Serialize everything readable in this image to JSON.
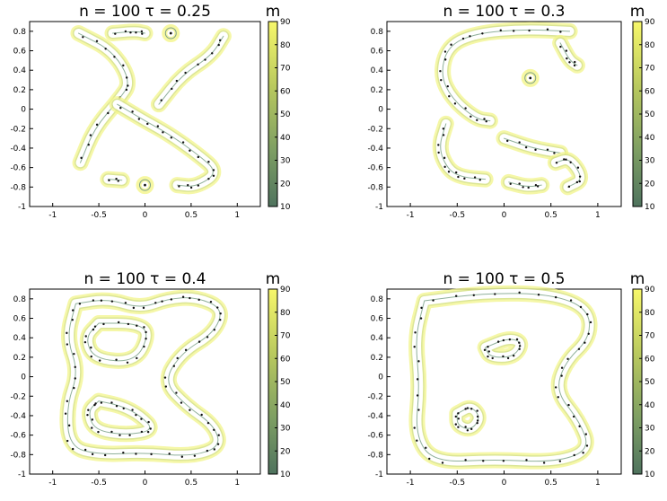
{
  "chart_data": [
    {
      "type": "contour",
      "title": "n = 100   τ = 0.25",
      "xlim": [
        -1.25,
        1.25
      ],
      "ylim": [
        -1,
        0.9
      ],
      "x_ticks": [
        "-1",
        "-0.5",
        "0",
        "0.5",
        "1"
      ],
      "y_ticks": [
        "0.8",
        "0.6",
        "0.4",
        "0.2",
        "0",
        "-0.2",
        "-0.4",
        "-0.6",
        "-0.8",
        "-1"
      ],
      "colorbar": {
        "label": "m",
        "ticks": [
          "90",
          "80",
          "70",
          "60",
          "50",
          "40",
          "30",
          "20",
          "10"
        ],
        "range": [
          10,
          90
        ]
      },
      "contours": [
        [
          [
            -0.72,
            0.78
          ],
          [
            -0.35,
            0.6
          ],
          [
            -0.15,
            0.28
          ],
          [
            -0.28,
            0.1
          ],
          [
            -0.55,
            -0.2
          ],
          [
            -0.7,
            -0.55
          ]
        ],
        [
          [
            -0.35,
            0.78
          ],
          [
            -0.1,
            0.8
          ],
          [
            0.0,
            0.78
          ]
        ],
        [
          [
            0.15,
            0.05
          ],
          [
            0.4,
            0.35
          ],
          [
            0.72,
            0.55
          ],
          [
            0.85,
            0.75
          ]
        ],
        [
          [
            -0.3,
            0.05
          ],
          [
            0.0,
            -0.12
          ],
          [
            0.25,
            -0.25
          ],
          [
            0.55,
            -0.45
          ],
          [
            0.8,
            -0.65
          ],
          [
            0.55,
            -0.8
          ],
          [
            0.35,
            -0.78
          ]
        ],
        [
          [
            -0.4,
            -0.72
          ],
          [
            -0.25,
            -0.73
          ]
        ],
        [
          [
            0.0,
            -0.78
          ]
        ],
        [
          [
            0.28,
            0.78
          ]
        ]
      ]
    },
    {
      "type": "contour",
      "title": "n = 100   τ = 0.3",
      "xlim": [
        -1.25,
        1.25
      ],
      "ylim": [
        -1,
        0.9
      ],
      "x_ticks": [
        "-1",
        "-0.5",
        "0",
        "0.5",
        "1"
      ],
      "y_ticks": [
        "0.8",
        "0.6",
        "0.4",
        "0.2",
        "0",
        "-0.2",
        "-0.4",
        "-0.6",
        "-0.8",
        "-1"
      ],
      "colorbar": {
        "label": "m",
        "ticks": [
          "90",
          "80",
          "70",
          "60",
          "50",
          "40",
          "30",
          "20",
          "10"
        ],
        "range": [
          10,
          90
        ]
      },
      "contours": [
        [
          [
            0.7,
            0.8
          ],
          [
            0.2,
            0.82
          ],
          [
            -0.3,
            0.78
          ],
          [
            -0.6,
            0.65
          ],
          [
            -0.68,
            0.35
          ],
          [
            -0.55,
            0.1
          ],
          [
            -0.3,
            -0.1
          ],
          [
            -0.15,
            -0.12
          ]
        ],
        [
          [
            -0.62,
            -0.15
          ],
          [
            -0.7,
            -0.4
          ],
          [
            -0.6,
            -0.62
          ],
          [
            -0.45,
            -0.7
          ],
          [
            -0.2,
            -0.72
          ]
        ],
        [
          [
            0.6,
            0.68
          ],
          [
            0.7,
            0.5
          ],
          [
            0.78,
            0.45
          ]
        ],
        [
          [
            0.28,
            0.32
          ]
        ],
        [
          [
            0.05,
            -0.75
          ],
          [
            0.25,
            -0.8
          ],
          [
            0.4,
            -0.78
          ]
        ],
        [
          [
            0.0,
            -0.3
          ],
          [
            0.3,
            -0.4
          ],
          [
            0.6,
            -0.45
          ]
        ],
        [
          [
            0.55,
            -0.55
          ],
          [
            0.7,
            -0.5
          ],
          [
            0.85,
            -0.72
          ],
          [
            0.68,
            -0.8
          ]
        ]
      ]
    },
    {
      "type": "contour",
      "title": "n = 100   τ = 0.4",
      "xlim": [
        -1.25,
        1.25
      ],
      "ylim": [
        -1,
        0.9
      ],
      "x_ticks": [
        "-1",
        "-0.5",
        "0",
        "0.5",
        "1"
      ],
      "y_ticks": [
        "0.8",
        "0.6",
        "0.4",
        "0.2",
        "0",
        "-0.2",
        "-0.4",
        "-0.6",
        "-0.8",
        "-1"
      ],
      "colorbar": {
        "label": "m",
        "ticks": [
          "90",
          "80",
          "70",
          "60",
          "50",
          "40",
          "30",
          "20",
          "10"
        ],
        "range": [
          10,
          90
        ]
      },
      "contours": [
        [
          [
            -0.75,
            0.75
          ],
          [
            -0.4,
            0.8
          ],
          [
            -0.05,
            0.7
          ],
          [
            0.25,
            0.8
          ],
          [
            0.55,
            0.82
          ],
          [
            0.85,
            0.7
          ],
          [
            0.75,
            0.45
          ],
          [
            0.4,
            0.25
          ],
          [
            0.2,
            -0.05
          ],
          [
            0.45,
            -0.3
          ],
          [
            0.75,
            -0.5
          ],
          [
            0.82,
            -0.72
          ],
          [
            0.5,
            -0.82
          ],
          [
            0.0,
            -0.78
          ],
          [
            -0.5,
            -0.8
          ],
          [
            -0.82,
            -0.72
          ],
          [
            -0.85,
            -0.3
          ],
          [
            -0.72,
            0.05
          ],
          [
            -0.85,
            0.4
          ],
          [
            -0.75,
            0.75
          ]
        ],
        [
          [
            -0.5,
            0.55
          ],
          [
            -0.1,
            0.55
          ],
          [
            0.05,
            0.45
          ],
          [
            -0.1,
            0.15
          ],
          [
            -0.55,
            0.18
          ],
          [
            -0.65,
            0.4
          ],
          [
            -0.5,
            0.55
          ]
        ],
        [
          [
            -0.5,
            -0.25
          ],
          [
            -0.25,
            -0.3
          ],
          [
            -0.05,
            -0.4
          ],
          [
            0.1,
            -0.55
          ],
          [
            -0.2,
            -0.6
          ],
          [
            -0.55,
            -0.55
          ],
          [
            -0.62,
            -0.35
          ],
          [
            -0.5,
            -0.25
          ]
        ]
      ]
    },
    {
      "type": "contour",
      "title": "n = 100   τ = 0.5",
      "xlim": [
        -1.25,
        1.25
      ],
      "ylim": [
        -1,
        0.9
      ],
      "x_ticks": [
        "-1",
        "-0.5",
        "0",
        "0.5",
        "1"
      ],
      "y_ticks": [
        "0.8",
        "0.6",
        "0.4",
        "0.2",
        "0",
        "-0.2",
        "-0.4",
        "-0.6",
        "-0.8",
        "-1"
      ],
      "colorbar": {
        "label": "m",
        "ticks": [
          "90",
          "80",
          "70",
          "60",
          "50",
          "40",
          "30",
          "20",
          "10"
        ],
        "range": [
          10,
          90
        ]
      },
      "contours": [
        [
          [
            -0.85,
            0.78
          ],
          [
            -0.2,
            0.86
          ],
          [
            0.5,
            0.85
          ],
          [
            0.9,
            0.7
          ],
          [
            0.92,
            0.4
          ],
          [
            0.65,
            0.15
          ],
          [
            0.55,
            -0.15
          ],
          [
            0.8,
            -0.45
          ],
          [
            0.92,
            -0.75
          ],
          [
            0.55,
            -0.88
          ],
          [
            -0.1,
            -0.85
          ],
          [
            -0.75,
            -0.88
          ],
          [
            -0.95,
            -0.6
          ],
          [
            -0.9,
            -0.1
          ],
          [
            -0.95,
            0.4
          ],
          [
            -0.85,
            0.78
          ]
        ],
        [
          [
            -0.2,
            0.3
          ],
          [
            0.05,
            0.4
          ],
          [
            0.2,
            0.35
          ],
          [
            0.1,
            0.2
          ],
          [
            -0.15,
            0.2
          ],
          [
            -0.2,
            0.3
          ]
        ],
        [
          [
            -0.5,
            -0.38
          ],
          [
            -0.35,
            -0.3
          ],
          [
            -0.25,
            -0.42
          ],
          [
            -0.35,
            -0.55
          ],
          [
            -0.5,
            -0.5
          ],
          [
            -0.5,
            -0.38
          ]
        ]
      ]
    }
  ]
}
